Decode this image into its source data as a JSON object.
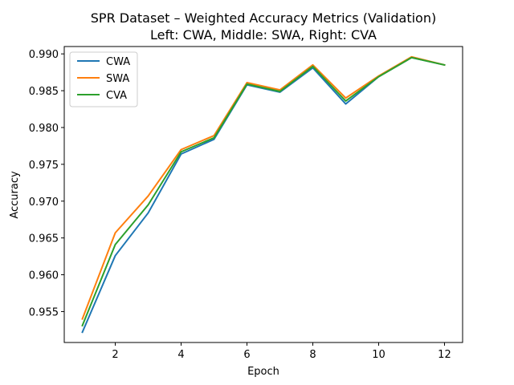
{
  "chart_data": {
    "type": "line",
    "title": "SPR Dataset – Weighted Accuracy Metrics (Validation)",
    "subtitle": "Left: CWA, Middle: SWA, Right: CVA",
    "xlabel": "Epoch",
    "ylabel": "Accuracy",
    "xlim": [
      0.45,
      12.55
    ],
    "ylim": [
      0.9508,
      0.991
    ],
    "xticks": [
      2,
      4,
      6,
      8,
      10,
      12
    ],
    "yticks": [
      0.955,
      0.96,
      0.965,
      0.97,
      0.975,
      0.98,
      0.985,
      0.99
    ],
    "ytick_labels": [
      "0.955",
      "0.960",
      "0.965",
      "0.970",
      "0.975",
      "0.980",
      "0.985",
      "0.990"
    ],
    "grid": false,
    "legend_position": "top-left",
    "x": [
      1,
      2,
      3,
      4,
      5,
      6,
      7,
      8,
      9,
      10,
      11,
      12
    ],
    "series": [
      {
        "name": "CWA",
        "color": "#1f77b4",
        "values": [
          0.9522,
          0.9626,
          0.9684,
          0.9764,
          0.9784,
          0.9858,
          0.9848,
          0.9881,
          0.9832,
          0.9869,
          0.9895,
          0.9885
        ]
      },
      {
        "name": "SWA",
        "color": "#ff7f0e",
        "values": [
          0.954,
          0.9657,
          0.9707,
          0.977,
          0.9789,
          0.9861,
          0.9851,
          0.9885,
          0.984,
          0.987,
          0.9896,
          0.9885
        ]
      },
      {
        "name": "CVA",
        "color": "#2ca02c",
        "values": [
          0.9531,
          0.9641,
          0.9695,
          0.9767,
          0.9786,
          0.9859,
          0.9849,
          0.9883,
          0.9836,
          0.9869,
          0.9895,
          0.9885
        ]
      }
    ]
  }
}
